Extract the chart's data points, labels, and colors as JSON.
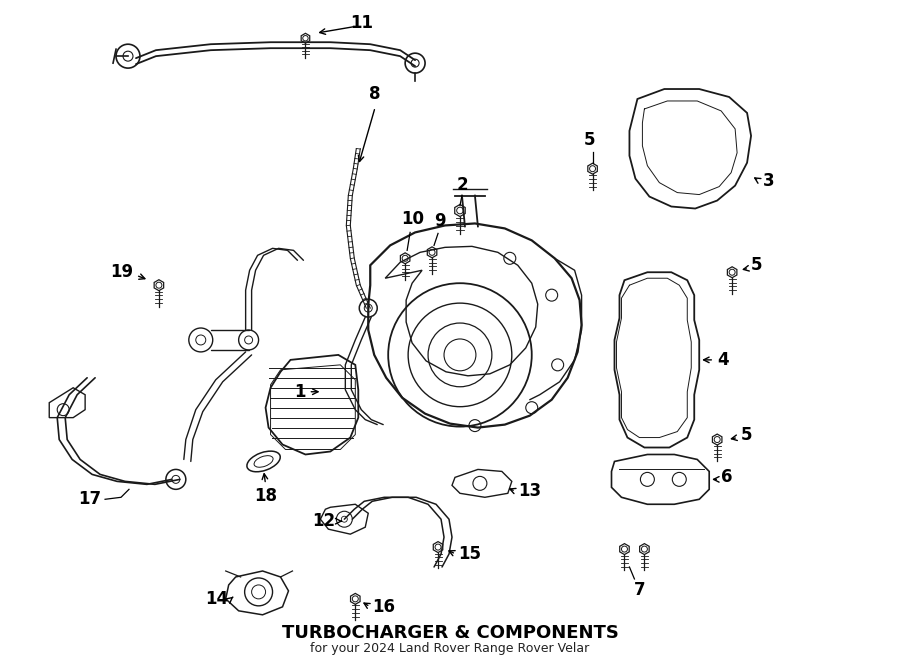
{
  "title": "TURBOCHARGER & COMPONENTS",
  "subtitle": "for your 2024 Land Rover Range Rover Velar",
  "background_color": "#ffffff",
  "line_color": "#1a1a1a",
  "label_color": "#000000",
  "font_size_title": 13,
  "font_size_label": 12,
  "figsize": [
    9.0,
    6.62
  ],
  "dpi": 100,
  "xlim": [
    0,
    900
  ],
  "ylim": [
    0,
    662
  ]
}
